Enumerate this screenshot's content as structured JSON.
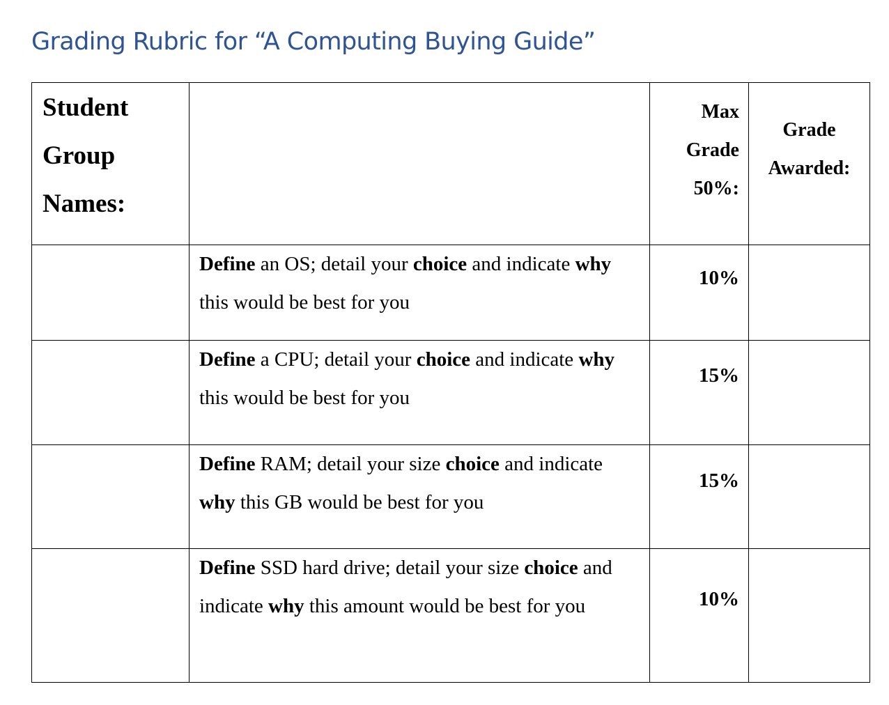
{
  "title": "Grading Rubric for “A Computing Buying Guide”",
  "header": {
    "names_lines": [
      "Student",
      "Group",
      "Names:"
    ],
    "max_lines": [
      "Max",
      "Grade",
      "50%:"
    ],
    "award_lines": [
      "Grade",
      "Awarded:"
    ]
  },
  "rows": [
    {
      "segments": [
        {
          "text": "Define",
          "bold": true
        },
        {
          "text": " an OS; detail your ",
          "bold": false
        },
        {
          "text": "choice",
          "bold": true
        },
        {
          "text": " and indicate ",
          "bold": false
        },
        {
          "text": "why",
          "bold": true
        },
        {
          "text": " this would be best for you",
          "bold": false
        }
      ],
      "percent": "10%"
    },
    {
      "segments": [
        {
          "text": "Define",
          "bold": true
        },
        {
          "text": " a CPU; detail your ",
          "bold": false
        },
        {
          "text": "choice",
          "bold": true
        },
        {
          "text": " and indicate ",
          "bold": false
        },
        {
          "text": "why",
          "bold": true
        },
        {
          "text": " this would be best for you",
          "bold": false
        }
      ],
      "percent": "15%"
    },
    {
      "segments": [
        {
          "text": "Define",
          "bold": true
        },
        {
          "text": " RAM; detail your size ",
          "bold": false
        },
        {
          "text": "choice",
          "bold": true
        },
        {
          "text": " and indicate ",
          "bold": false
        },
        {
          "text": "why",
          "bold": true
        },
        {
          "text": " this GB would be best for you",
          "bold": false
        }
      ],
      "percent": "15%"
    },
    {
      "segments": [
        {
          "text": "Define",
          "bold": true
        },
        {
          "text": " SSD hard drive; detail your size ",
          "bold": false
        },
        {
          "text": "choice",
          "bold": true
        },
        {
          "text": " and indicate ",
          "bold": false
        },
        {
          "text": "why",
          "bold": true
        },
        {
          "text": " this amount would be best for you",
          "bold": false
        }
      ],
      "percent": "10%"
    }
  ]
}
